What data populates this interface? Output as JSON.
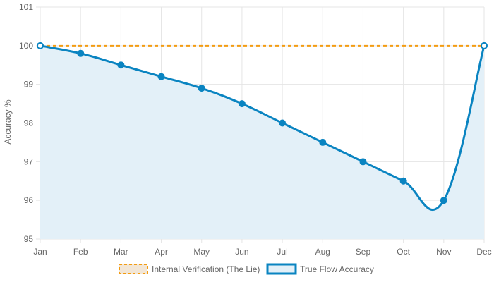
{
  "chart_data": {
    "type": "line",
    "title": "",
    "xlabel": "",
    "ylabel": "Accuracy %",
    "categories": [
      "Jan",
      "Feb",
      "Mar",
      "Apr",
      "May",
      "Jun",
      "Jul",
      "Aug",
      "Sep",
      "Oct",
      "Nov",
      "Dec"
    ],
    "ylim": [
      95,
      101
    ],
    "yticks": [
      "95",
      "96",
      "97",
      "98",
      "99",
      "100",
      "101"
    ],
    "grid": true,
    "legend_position": "bottom",
    "series": [
      {
        "name": "Internal Verification (The Lie)",
        "values": [
          100,
          100,
          100,
          100,
          100,
          100,
          100,
          100,
          100,
          100,
          100,
          100
        ],
        "color": "#f39c12",
        "fill": "#f2e6d6",
        "style": "dashed"
      },
      {
        "name": "True Flow Accuracy",
        "values": [
          100,
          99.8,
          99.5,
          99.2,
          98.9,
          98.5,
          98.0,
          97.5,
          97.0,
          96.5,
          96.0,
          100
        ],
        "color": "#0a84c1",
        "fill": "#e3f0f8",
        "style": "solid"
      }
    ]
  }
}
